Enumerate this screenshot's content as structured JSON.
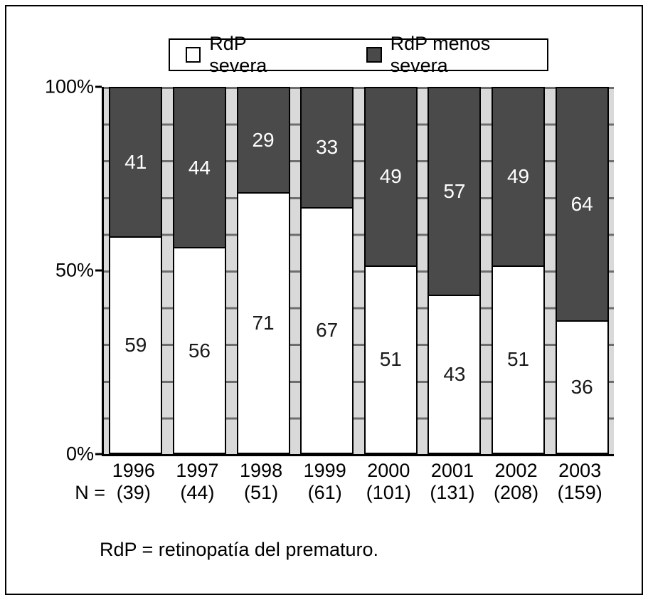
{
  "figure": {
    "n_label": "N =",
    "footnote": "RdP = retinopatía del prematuro."
  },
  "legend": {
    "items": [
      {
        "label": "RdP severa",
        "color": "#ffffff"
      },
      {
        "label": "RdP menos severa",
        "color": "#4a4a4a"
      }
    ]
  },
  "axes": {
    "y_ticks": [
      "100%",
      "50%",
      "0%"
    ]
  },
  "chart_data": {
    "type": "bar",
    "stacked": true,
    "percent_stacked": true,
    "categories": [
      "1996",
      "1997",
      "1998",
      "1999",
      "2000",
      "2001",
      "2002",
      "2003"
    ],
    "n_values": [
      "(39)",
      "(44)",
      "(51)",
      "(61)",
      "(101)",
      "(131)",
      "(208)",
      "(159)"
    ],
    "series": [
      {
        "name": "RdP severa",
        "color": "#ffffff",
        "values": [
          59,
          56,
          71,
          67,
          51,
          43,
          51,
          36
        ]
      },
      {
        "name": "RdP menos severa",
        "color": "#4a4a4a",
        "values": [
          41,
          44,
          29,
          33,
          49,
          57,
          49,
          64
        ]
      }
    ],
    "title": "",
    "xlabel": "",
    "ylabel": "",
    "ylim": [
      0,
      100
    ],
    "y_major_tick": 50,
    "y_minor_tick": 10,
    "legend_position": "top",
    "grid": "minor ticks visible in gaps between bars"
  }
}
